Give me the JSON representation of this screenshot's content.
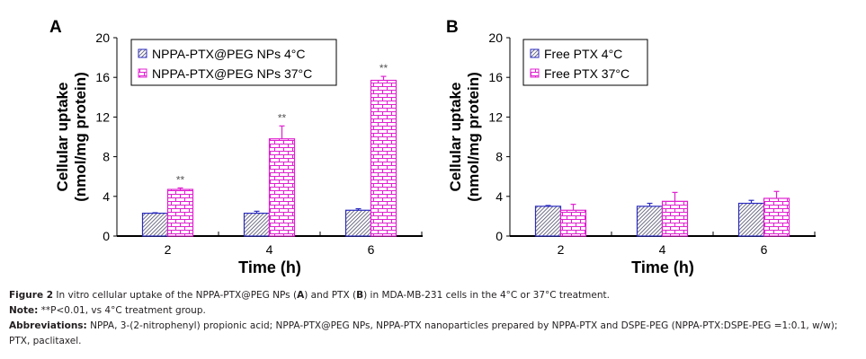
{
  "chart_data": [
    {
      "panel": "A",
      "type": "bar",
      "title": "",
      "xlabel": "Time (h)",
      "ylabel_line1": "Cellular uptake",
      "ylabel_line2": "(nmol/mg protein)",
      "categories": [
        "2",
        "4",
        "6"
      ],
      "ylim": [
        0,
        20
      ],
      "yticks": [
        "0",
        "4",
        "8",
        "12",
        "16",
        "20"
      ],
      "grid": false,
      "legend_position": "top-left",
      "series": [
        {
          "name": "NPPA-PTX@PEG NPs 4°C",
          "pattern": "diagonal-hatch",
          "color": "#2b2bbf",
          "values": [
            2.3,
            2.3,
            2.6
          ],
          "errors": [
            0.05,
            0.2,
            0.15
          ]
        },
        {
          "name": "NPPA-PTX@PEG NPs 37°C",
          "pattern": "brick",
          "color": "#e020d0",
          "values": [
            4.7,
            9.8,
            15.7
          ],
          "errors": [
            0.15,
            1.3,
            0.4
          ]
        }
      ],
      "annotations": [
        "**",
        "**",
        "**"
      ]
    },
    {
      "panel": "B",
      "type": "bar",
      "title": "",
      "xlabel": "Time (h)",
      "ylabel_line1": "Cellular uptake",
      "ylabel_line2": "(nmol/mg protein)",
      "categories": [
        "2",
        "4",
        "6"
      ],
      "ylim": [
        0,
        20
      ],
      "yticks": [
        "0",
        "4",
        "8",
        "12",
        "16",
        "20"
      ],
      "grid": false,
      "legend_position": "top-left",
      "series": [
        {
          "name": "Free PTX 4°C",
          "pattern": "diagonal-hatch",
          "color": "#2b2bbf",
          "values": [
            3.0,
            3.0,
            3.3
          ],
          "errors": [
            0.08,
            0.3,
            0.3
          ]
        },
        {
          "name": "Free PTX 37°C",
          "pattern": "brick",
          "color": "#e020d0",
          "values": [
            2.6,
            3.5,
            3.8
          ],
          "errors": [
            0.6,
            0.9,
            0.7
          ]
        }
      ],
      "annotations": []
    }
  ],
  "caption": {
    "figure_label": "Figure 2",
    "figure_text_1": " In vitro cellular uptake of the NPPA-PTX@PEG NPs (",
    "panel_a": "A",
    "figure_text_2": ") and PTX (",
    "panel_b": "B",
    "figure_text_3": ") in MDA-MB-231 cells in the 4°C or 37°C treatment.",
    "note_label": "Note:",
    "note_text": " **P<0.01, vs 4°C treatment group.",
    "abbrev_label": "Abbreviations:",
    "abbrev_text": " NPPA, 3-(2-nitrophenyl) propionic acid; NPPA-PTX@PEG NPs, NPPA-PTX nanoparticles prepared by NPPA-PTX and DSPE-PEG (NPPA-PTX:DSPE-PEG =1:0.1, w/w); PTX, paclitaxel."
  }
}
